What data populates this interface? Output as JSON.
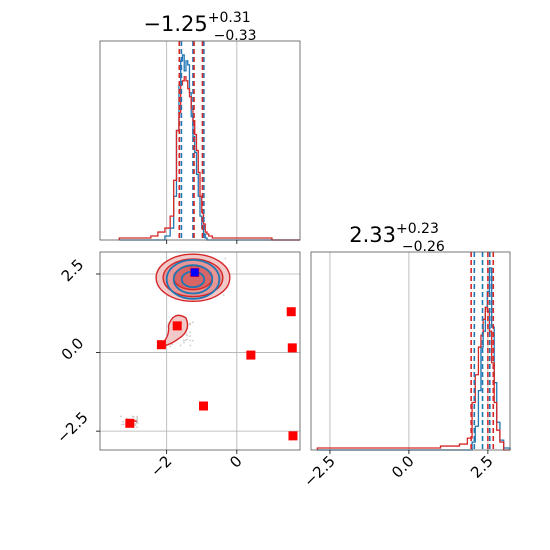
{
  "chart_data": [
    {
      "panel": "top-left",
      "type": "step-histogram",
      "title": {
        "value": "−1.25",
        "plus": "+0.31",
        "minus": "−0.33"
      },
      "xlim": [
        -3.9,
        1.8
      ],
      "grid": true,
      "x_ticks": [],
      "hist_x_edges": [
        -3.35,
        -2.85,
        -2.45,
        -2.25,
        -2.05,
        -1.9,
        -1.8,
        -1.72,
        -1.65,
        -1.6,
        -1.55,
        -1.5,
        -1.45,
        -1.4,
        -1.35,
        -1.3,
        -1.25,
        -1.2,
        -1.15,
        -1.1,
        -1.05,
        -1.0,
        -0.95,
        -0.9,
        -0.85,
        -0.8,
        -0.7,
        -0.55,
        -0.2,
        0.3,
        1.0,
        1.8
      ],
      "series": [
        {
          "color": "#1f77b4",
          "heights": [
            0,
            0,
            0,
            0,
            0.02,
            0.06,
            0.22,
            0.55,
            0.78,
            0.9,
            0.93,
            0.85,
            0.9,
            0.88,
            0.74,
            0.62,
            0.52,
            0.44,
            0.33,
            0.22,
            0.12,
            0.06,
            0.03,
            0.01,
            0,
            0,
            0,
            0,
            0,
            0,
            0
          ]
        },
        {
          "color": "#d62728",
          "heights": [
            0.01,
            0.01,
            0.02,
            0.04,
            0.06,
            0.12,
            0.3,
            0.55,
            0.64,
            0.78,
            0.8,
            0.82,
            0.8,
            0.76,
            0.72,
            0.66,
            0.6,
            0.53,
            0.45,
            0.34,
            0.22,
            0.14,
            0.08,
            0.04,
            0.03,
            0.02,
            0.01,
            0.01,
            0.01,
            0.01,
            0
          ]
        }
      ],
      "quantile_lines": [
        {
          "color": "#1f77b4",
          "x": [
            -1.58,
            -1.25,
            -0.94
          ]
        },
        {
          "color": "#d62728",
          "x": [
            -1.64,
            -1.22,
            -0.98
          ]
        }
      ]
    },
    {
      "panel": "bottom-left",
      "type": "scatter-contour",
      "xlim": [
        -3.9,
        1.8
      ],
      "ylim": [
        -3.1,
        3.2
      ],
      "x_ticks": [
        "−2",
        "0"
      ],
      "x_tick_values": [
        -2,
        0
      ],
      "y_ticks": [
        "2.5",
        "0.0",
        "−2.5"
      ],
      "y_tick_values": [
        2.5,
        0,
        -2.5
      ],
      "grid": true,
      "blue_contours": {
        "color": "#1f77b4",
        "center": [
          -1.25,
          2.33
        ],
        "rx": [
          0.75,
          0.55,
          0.32
        ],
        "ry": [
          0.62,
          0.45,
          0.25
        ]
      },
      "red_contours": {
        "color": "#d62728",
        "center": [
          -1.25,
          2.38
        ],
        "rx": [
          1.05,
          0.85,
          0.55
        ],
        "ry": [
          0.75,
          0.6,
          0.38
        ]
      },
      "red_squares": [
        {
          "x": -1.2,
          "y": 2.55
        },
        {
          "x": -1.7,
          "y": 0.85
        },
        {
          "x": -2.15,
          "y": 0.25
        },
        {
          "x": 0.4,
          "y": -0.08
        },
        {
          "x": 1.55,
          "y": 1.3
        },
        {
          "x": 1.58,
          "y": 0.15
        },
        {
          "x": -0.95,
          "y": -1.7
        },
        {
          "x": -3.05,
          "y": -2.25
        },
        {
          "x": 1.6,
          "y": -2.65
        }
      ],
      "blue_square": {
        "x": -1.2,
        "y": 2.55
      }
    },
    {
      "panel": "bottom-right",
      "type": "step-histogram",
      "title": {
        "value": "2.33",
        "plus": "+0.23",
        "minus": "−0.26"
      },
      "xlim": [
        -3.1,
        3.2
      ],
      "grid": true,
      "x_ticks": [
        "−2.5",
        "0.0",
        "2.5"
      ],
      "x_tick_values": [
        -2.5,
        0,
        2.5
      ],
      "hist_x_edges": [
        -2.9,
        -1.5,
        -0.5,
        1.0,
        1.6,
        1.85,
        2.0,
        2.1,
        2.2,
        2.28,
        2.35,
        2.42,
        2.48,
        2.55,
        2.62,
        2.7,
        2.78,
        2.88,
        3.0,
        3.2
      ],
      "series": [
        {
          "color": "#1f77b4",
          "heights": [
            0,
            0,
            0,
            0,
            0,
            0,
            0.04,
            0.12,
            0.3,
            0.52,
            0.6,
            0.72,
            0.8,
            0.92,
            0.62,
            0.34,
            0.14,
            0.05,
            0.01
          ]
        },
        {
          "color": "#d62728",
          "heights": [
            0.01,
            0.01,
            0.01,
            0.02,
            0.03,
            0.06,
            0.24,
            0.38,
            0.52,
            0.58,
            0.66,
            0.72,
            0.7,
            0.6,
            0.44,
            0.24,
            0.1,
            0.04,
            0
          ]
        }
      ],
      "quantile_lines": [
        {
          "color": "#1f77b4",
          "x": [
            2.07,
            2.33,
            2.56
          ]
        },
        {
          "color": "#d62728",
          "x": [
            1.97,
            2.5,
            2.67
          ]
        }
      ]
    }
  ]
}
